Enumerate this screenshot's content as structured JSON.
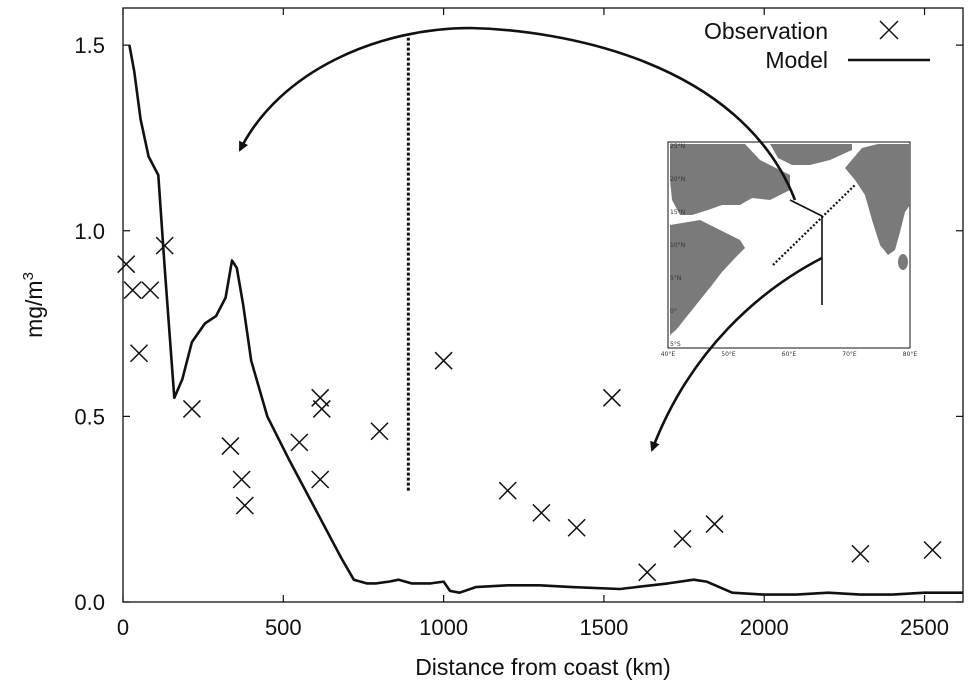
{
  "chart_data": {
    "type": "scatter",
    "xlabel": "Distance from coast (km)",
    "ylabel": "mg/m",
    "ylabel_superscript": "3",
    "xlim": [
      0,
      2620
    ],
    "ylim": [
      0,
      1.6
    ],
    "xticks": [
      0,
      500,
      1000,
      1500,
      2000,
      2500
    ],
    "yticks": [
      0.0,
      0.5,
      1.0,
      1.5
    ],
    "ytick_labels": [
      "0.0",
      "0.5",
      "1.0",
      "1.5"
    ],
    "legend_position": "top-right",
    "series": [
      {
        "name": "Observation",
        "type": "scatter",
        "marker": "x",
        "x": [
          10,
          30,
          50,
          85,
          130,
          215,
          335,
          370,
          380,
          550,
          615,
          620,
          615,
          800,
          1000,
          1200,
          1305,
          1415,
          1525,
          1635,
          1745,
          1845,
          2300,
          2525
        ],
        "y": [
          0.91,
          0.84,
          0.67,
          0.84,
          0.96,
          0.52,
          0.42,
          0.33,
          0.26,
          0.43,
          0.55,
          0.52,
          0.33,
          0.46,
          0.65,
          0.3,
          0.24,
          0.2,
          0.55,
          0.08,
          0.17,
          0.21,
          0.13,
          0.14
        ]
      },
      {
        "name": "Model",
        "type": "line",
        "x": [
          20,
          35,
          55,
          80,
          110,
          130,
          160,
          185,
          215,
          255,
          290,
          320,
          340,
          355,
          375,
          400,
          450,
          520,
          600,
          680,
          720,
          760,
          790,
          830,
          860,
          900,
          960,
          1000,
          1020,
          1050,
          1100,
          1200,
          1300,
          1400,
          1550,
          1700,
          1780,
          1820,
          1900,
          2000,
          2100,
          2200,
          2300,
          2400,
          2500,
          2620
        ],
        "y": [
          1.5,
          1.43,
          1.3,
          1.2,
          1.15,
          0.9,
          0.55,
          0.6,
          0.7,
          0.75,
          0.77,
          0.82,
          0.92,
          0.9,
          0.8,
          0.65,
          0.5,
          0.38,
          0.25,
          0.12,
          0.06,
          0.05,
          0.05,
          0.055,
          0.06,
          0.05,
          0.05,
          0.055,
          0.03,
          0.025,
          0.04,
          0.045,
          0.045,
          0.04,
          0.035,
          0.05,
          0.06,
          0.055,
          0.025,
          0.02,
          0.02,
          0.025,
          0.02,
          0.02,
          0.025,
          0.025
        ]
      }
    ],
    "annotations": [
      {
        "type": "dashed-vertical-line",
        "x": 890,
        "y_from": 0.3,
        "y_to": 1.52
      },
      {
        "type": "curved-arrow",
        "from": "inset solid transect",
        "to_data": [
          370,
          1.18
        ]
      },
      {
        "type": "curved-arrow",
        "from": "inset dotted transect",
        "to_data": [
          1640,
          0.4
        ]
      }
    ],
    "inset_map": {
      "description_tag": "Arabian Sea region map",
      "lon_labels": [
        "40°E",
        "50°E",
        "60°E",
        "70°E",
        "80°E"
      ],
      "lat_labels": [
        "25°N",
        "20°N",
        "15°N",
        "10°N",
        "5°N",
        "0°",
        "5°S"
      ],
      "land_color": "#7a7a7a",
      "sea_color": "#ffffff"
    }
  }
}
